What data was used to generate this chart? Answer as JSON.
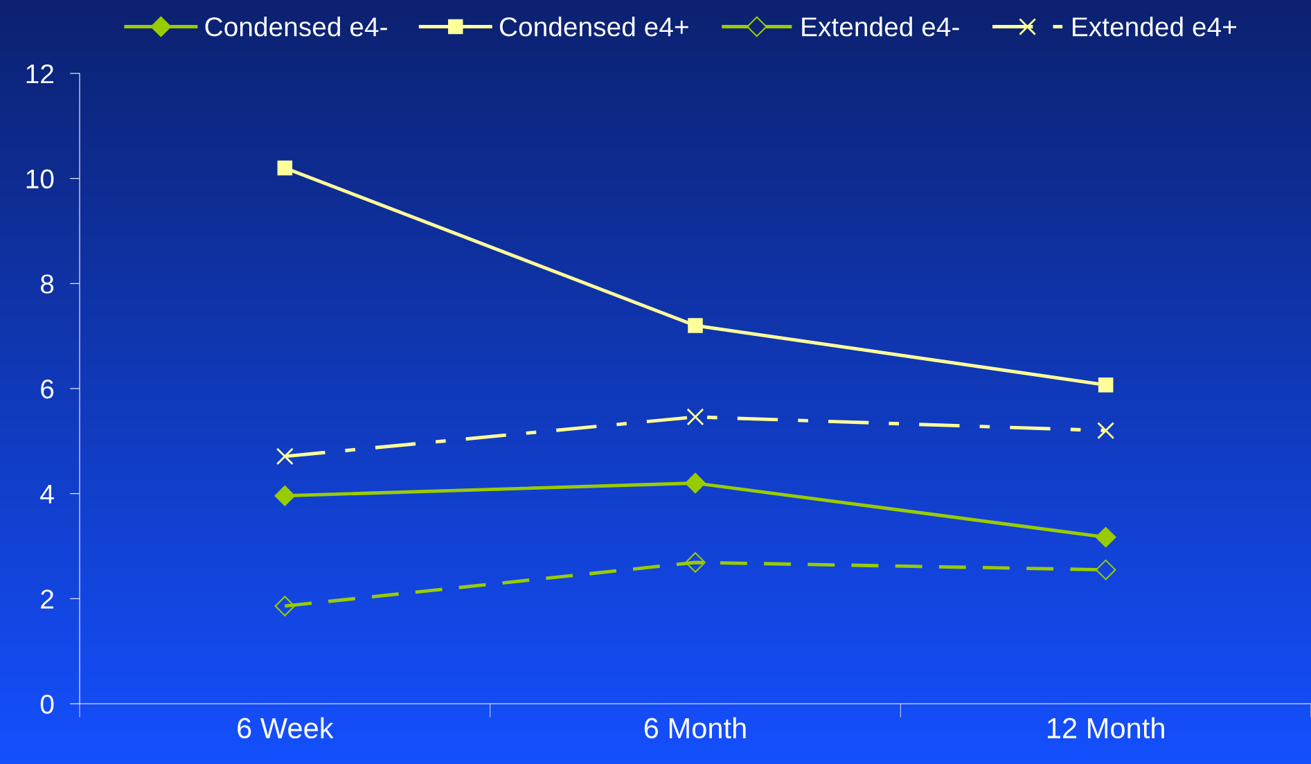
{
  "chart_data": {
    "type": "line",
    "categories": [
      "6 Week",
      "6 Month",
      "12 Month"
    ],
    "series": [
      {
        "name": "Condensed e4-",
        "color": "#99cc00",
        "values": [
          3.96,
          4.2,
          3.17
        ],
        "marker": "diamond",
        "line_style": "solid"
      },
      {
        "name": "Condensed e4+",
        "color": "#ffff99",
        "values": [
          10.2,
          7.2,
          6.07
        ],
        "marker": "square",
        "line_style": "solid"
      },
      {
        "name": "Extended e4-",
        "color": "#99cc00",
        "values": [
          1.86,
          2.69,
          2.55
        ],
        "marker": "diamond",
        "line_style": "dashed"
      },
      {
        "name": "Extended e4+",
        "color": "#ffff99",
        "values": [
          4.71,
          5.46,
          5.2
        ],
        "marker": "cross",
        "line_style": "dashdot"
      }
    ],
    "ylim": [
      0,
      12
    ],
    "yticks": [
      0,
      2,
      4,
      6,
      8,
      10,
      12
    ],
    "grid": false,
    "legend": "top"
  }
}
